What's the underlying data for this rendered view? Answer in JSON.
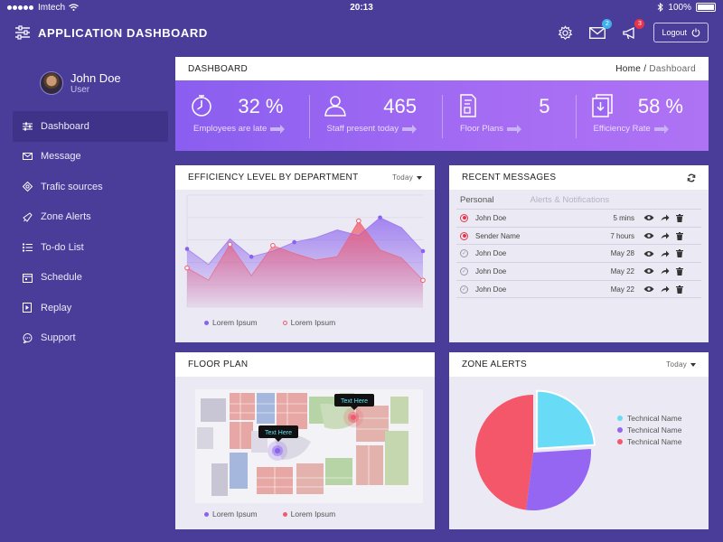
{
  "status_bar": {
    "carrier": "Imtech",
    "time": "20:13",
    "battery": "100%"
  },
  "app": {
    "title": "APPLICATION DASHBOARD",
    "logout_label": "Logout",
    "mail_count": "2",
    "alert_count": "3"
  },
  "user": {
    "name": "John Doe",
    "role": "User"
  },
  "sidebar": {
    "items": [
      {
        "label": "Dashboard",
        "icon": "sliders-icon",
        "active": true
      },
      {
        "label": "Message",
        "icon": "envelope-icon"
      },
      {
        "label": "Trafic sources",
        "icon": "target-icon"
      },
      {
        "label": "Zone Alerts",
        "icon": "megaphone-icon"
      },
      {
        "label": "To-do List",
        "icon": "list-icon"
      },
      {
        "label": "Schedule",
        "icon": "calendar-icon"
      },
      {
        "label": "Replay",
        "icon": "replay-icon"
      },
      {
        "label": "Support",
        "icon": "chat-icon"
      }
    ]
  },
  "dashboard": {
    "title": "DASHBOARD",
    "breadcrumb_home": "Home",
    "breadcrumb_sep": " / ",
    "breadcrumb_current": "Dashboard",
    "stats": [
      {
        "value": "32 %",
        "label": "Employees are late",
        "icon": "stopwatch-icon"
      },
      {
        "value": "465",
        "label": "Staff present today",
        "icon": "staff-icon"
      },
      {
        "value": "5",
        "label": "Floor Plans",
        "icon": "floorplan-doc-icon"
      },
      {
        "value": "58 %",
        "label": "Efficiency Rate",
        "icon": "efficiency-icon"
      }
    ]
  },
  "efficiency": {
    "title": "EFFICIENCY LEVEL BY DEPARTMENT",
    "filter": "Today",
    "colors": {
      "purple": "#8b62ee",
      "red": "#f05a6e"
    }
  },
  "chart_data": {
    "type": "area",
    "x": [
      1,
      2,
      3,
      4,
      5,
      6,
      7,
      8,
      9,
      10,
      11,
      12
    ],
    "series": [
      {
        "name": "Lorem Ipsum",
        "color": "#8b62ee",
        "marker": "filled",
        "values": [
          52,
          38,
          61,
          45,
          50,
          58,
          62,
          69,
          64,
          80,
          71,
          50
        ]
      },
      {
        "name": "Lorem Ipsum",
        "color": "#f05a6e",
        "marker": "hollow",
        "values": [
          35,
          24,
          56,
          28,
          55,
          48,
          42,
          45,
          77,
          51,
          44,
          24
        ]
      }
    ],
    "ylim": [
      0,
      100
    ],
    "grid": true,
    "legend": "bottom"
  },
  "messages": {
    "title": "RECENT MESSAGES",
    "tab_personal": "Personal",
    "tab_alerts": "Alerts & Notifications",
    "rows": [
      {
        "sender": "John Doe",
        "when": "5 mins",
        "unread": true
      },
      {
        "sender": "Sender Name",
        "when": "7 hours",
        "unread": true
      },
      {
        "sender": "John Doe",
        "when": "May 28",
        "unread": false
      },
      {
        "sender": "John Doe",
        "when": "May 22",
        "unread": false
      },
      {
        "sender": "John Doe",
        "when": "May 22",
        "unread": false
      }
    ]
  },
  "floor_plan": {
    "title": "FLOOR PLAN",
    "callout_1": "Text Here",
    "callout_2": "Text Here",
    "legend_1": "Lorem Ipsum",
    "legend_2": "Lorem Ipsum"
  },
  "zone_alerts": {
    "title": "ZONE ALERTS",
    "filter": "Today",
    "legend": [
      {
        "label": "Technical Name",
        "color": "#68dcf6"
      },
      {
        "label": "Technical Name",
        "color": "#9466f2"
      },
      {
        "label": "Technical Name",
        "color": "#f4566a"
      }
    ],
    "slices": [
      {
        "value": 24,
        "color": "#68dcf6"
      },
      {
        "value": 28,
        "color": "#9466f2"
      },
      {
        "value": 48,
        "color": "#f4566a"
      }
    ]
  }
}
